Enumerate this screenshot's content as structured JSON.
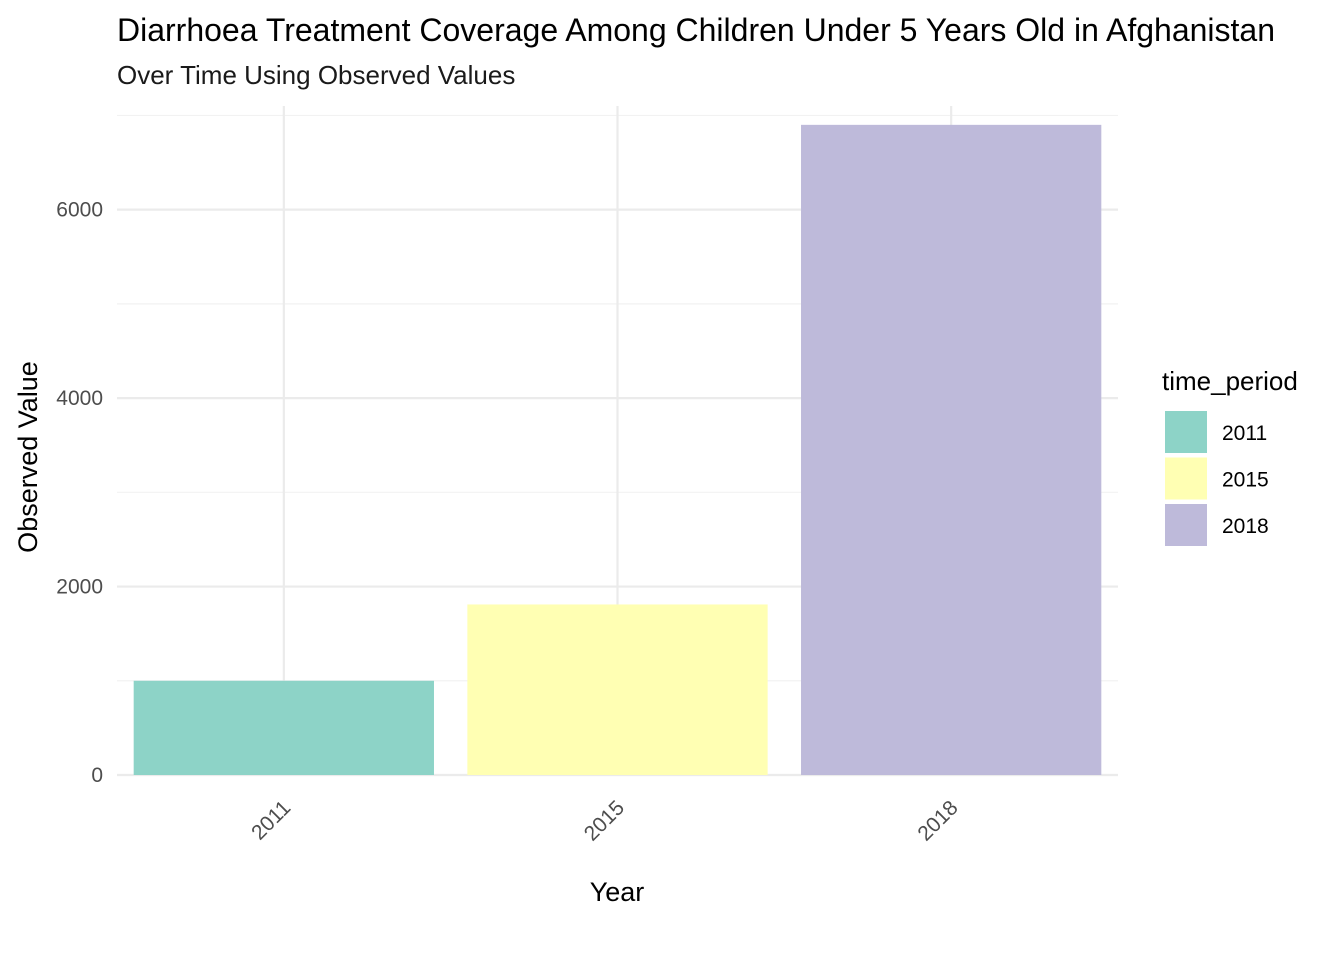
{
  "chart_data": {
    "type": "bar",
    "title": "Diarrhoea Treatment Coverage Among Children Under 5 Years Old in Afghanistan",
    "subtitle": "Over Time Using Observed Values",
    "xlabel": "Year",
    "ylabel": "Observed Value",
    "categories": [
      "2011",
      "2015",
      "2018"
    ],
    "values": [
      1000,
      1810,
      6900
    ],
    "colors": [
      "#8DD3C7",
      "#FFFFB3",
      "#BEBADA"
    ],
    "ylim": [
      0,
      7100
    ],
    "y_ticks": [
      0,
      2000,
      4000,
      6000
    ],
    "y_tick_labels": [
      "0",
      "2000",
      "4000",
      "6000"
    ],
    "grid": true,
    "legend": {
      "title": "time_period",
      "placement": "right",
      "entries": [
        "2011",
        "2015",
        "2018"
      ]
    }
  }
}
